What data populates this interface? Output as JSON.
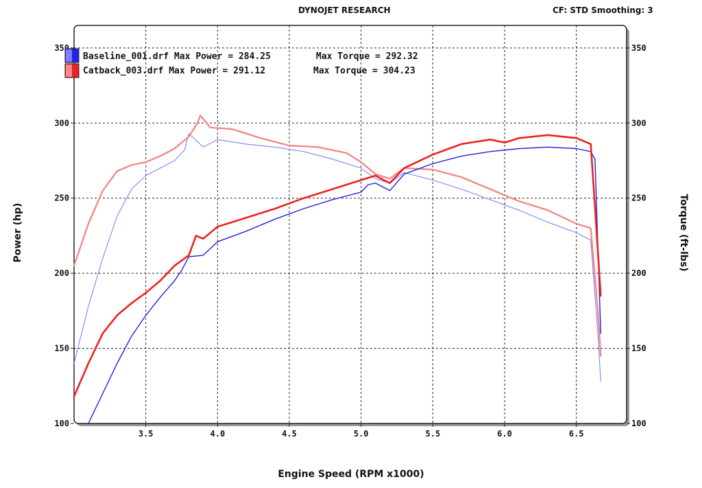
{
  "header": {
    "title": "DYNOJET RESEARCH",
    "settings": "CF: STD  Smoothing: 3"
  },
  "chart_data": {
    "type": "line",
    "title": "DYNOJET RESEARCH",
    "xlabel": "Engine Speed (RPM x1000)",
    "ylabel_left": "Power (hp)",
    "ylabel_right": "Torque (ft-lbs)",
    "xlim": [
      3.0,
      6.85
    ],
    "ylim_left": [
      100,
      365
    ],
    "ylim_right": [
      100,
      365
    ],
    "x_ticks": [
      "3.5",
      "4.0",
      "4.5",
      "5.0",
      "5.5",
      "6.0",
      "6.5"
    ],
    "y_ticks_left": [
      "100",
      "150",
      "200",
      "250",
      "300",
      "350"
    ],
    "y_ticks_right": [
      "100",
      "150",
      "200",
      "250",
      "300",
      "350"
    ],
    "grid": true,
    "legend": [
      {
        "label": "Baseline_001.drf Max Power = 284.25",
        "torque_label": "Max Torque = 292.32",
        "color": "#1f1fe0"
      },
      {
        "label": "Catback_003.drf Max Power = 291.12",
        "torque_label": "Max Torque = 304.23",
        "color": "#ee2020"
      }
    ],
    "series": [
      {
        "name": "Baseline_001.drf",
        "metric": "power",
        "color": "#1f1fe0",
        "x": [
          3.1,
          3.2,
          3.3,
          3.4,
          3.5,
          3.6,
          3.7,
          3.75,
          3.8,
          3.9,
          4.0,
          4.2,
          4.4,
          4.6,
          4.8,
          5.0,
          5.05,
          5.1,
          5.2,
          5.3,
          5.5,
          5.7,
          5.9,
          6.1,
          6.3,
          6.5,
          6.6,
          6.63,
          6.67
        ],
        "values": [
          100,
          120,
          140,
          158,
          172,
          184,
          195,
          202,
          211,
          212,
          221,
          228,
          236,
          243,
          249,
          254,
          259,
          260,
          255,
          266,
          273,
          278,
          281,
          283,
          284,
          283,
          281,
          276,
          160
        ]
      },
      {
        "name": "Baseline_001.drf",
        "metric": "torque",
        "color": "#8080ff",
        "x": [
          3.0,
          3.1,
          3.2,
          3.3,
          3.4,
          3.5,
          3.6,
          3.7,
          3.77,
          3.8,
          3.9,
          4.0,
          4.2,
          4.4,
          4.6,
          4.8,
          5.0,
          5.1,
          5.2,
          5.3,
          5.5,
          5.7,
          5.9,
          6.1,
          6.3,
          6.5,
          6.6,
          6.65,
          6.67
        ],
        "values": [
          140,
          178,
          210,
          238,
          256,
          265,
          270,
          275,
          282,
          293,
          284,
          289,
          286,
          284,
          281,
          276,
          270,
          263,
          260,
          267,
          262,
          256,
          249,
          242,
          234,
          227,
          222,
          160,
          128
        ]
      },
      {
        "name": "Catback_003.drf",
        "metric": "power",
        "color": "#ee2020",
        "x": [
          3.0,
          3.1,
          3.2,
          3.3,
          3.4,
          3.5,
          3.6,
          3.7,
          3.8,
          3.85,
          3.9,
          4.0,
          4.2,
          4.4,
          4.6,
          4.8,
          5.0,
          5.1,
          5.2,
          5.3,
          5.5,
          5.7,
          5.9,
          6.0,
          6.1,
          6.3,
          6.5,
          6.6,
          6.63,
          6.67
        ],
        "values": [
          118,
          140,
          160,
          172,
          180,
          187,
          195,
          205,
          212,
          225,
          223,
          231,
          237,
          243,
          250,
          256,
          262,
          265,
          260,
          270,
          279,
          286,
          289,
          287,
          290,
          292,
          290,
          286,
          244,
          185
        ]
      },
      {
        "name": "Catback_003.drf",
        "metric": "torque",
        "color": "#f08a8a",
        "x": [
          3.0,
          3.1,
          3.2,
          3.3,
          3.4,
          3.5,
          3.6,
          3.7,
          3.8,
          3.86,
          3.88,
          3.95,
          4.1,
          4.3,
          4.5,
          4.7,
          4.9,
          5.0,
          5.1,
          5.2,
          5.3,
          5.5,
          5.7,
          5.9,
          6.1,
          6.3,
          6.5,
          6.6,
          6.65,
          6.67
        ],
        "values": [
          205,
          233,
          255,
          268,
          272,
          274,
          278,
          283,
          291,
          300,
          305,
          297,
          296,
          290,
          285,
          284,
          280,
          274,
          266,
          263,
          270,
          269,
          264,
          256,
          248,
          242,
          233,
          230,
          175,
          145
        ]
      }
    ]
  }
}
